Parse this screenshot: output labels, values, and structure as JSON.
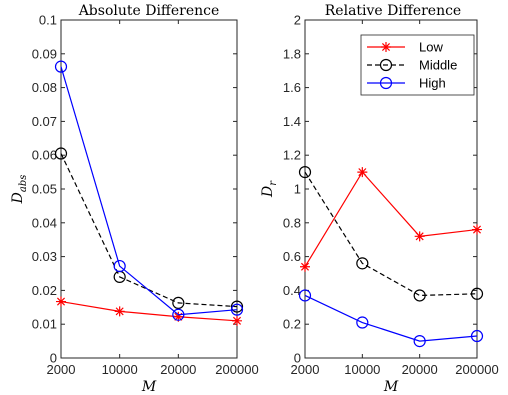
{
  "chart_data": [
    {
      "type": "line",
      "title": "Absolute Difference",
      "xlabel": "M",
      "ylabel_main": "D",
      "ylabel_sub": "abs",
      "categories": [
        "2000",
        "10000",
        "20000",
        "200000"
      ],
      "ylim": [
        0,
        0.1
      ],
      "yticks": [
        0,
        0.01,
        0.02,
        0.03,
        0.04,
        0.05,
        0.06,
        0.07,
        0.08,
        0.09,
        0.1
      ],
      "ytick_labels": [
        "0",
        "0.01",
        "0.02",
        "0.03",
        "0.04",
        "0.05",
        "0.06",
        "0.07",
        "0.08",
        "0.09",
        "0.1"
      ],
      "grid": false,
      "series": [
        {
          "name": "Low",
          "values": [
            0.0167,
            0.0138,
            0.0122,
            0.011
          ]
        },
        {
          "name": "Middle",
          "values": [
            0.0605,
            0.024,
            0.0163,
            0.0152
          ]
        },
        {
          "name": "High",
          "values": [
            0.0862,
            0.0272,
            0.0128,
            0.0143
          ]
        }
      ]
    },
    {
      "type": "line",
      "title": "Relative Difference",
      "xlabel": "M",
      "ylabel_main": "D",
      "ylabel_sub": "r",
      "categories": [
        "2000",
        "10000",
        "20000",
        "200000"
      ],
      "ylim": [
        0,
        2
      ],
      "yticks": [
        0,
        0.2,
        0.4,
        0.6,
        0.8,
        1,
        1.2,
        1.4,
        1.6,
        1.8,
        2
      ],
      "ytick_labels": [
        "0",
        "0.2",
        "0.4",
        "0.6",
        "0.8",
        "1",
        "1.2",
        "1.4",
        "1.6",
        "1.8",
        "2"
      ],
      "grid": false,
      "legend": "top-right",
      "series": [
        {
          "name": "Low",
          "values": [
            0.54,
            1.1,
            0.72,
            0.76
          ]
        },
        {
          "name": "Middle",
          "values": [
            1.1,
            0.56,
            0.37,
            0.38
          ]
        },
        {
          "name": "High",
          "values": [
            0.37,
            0.21,
            0.1,
            0.13
          ]
        }
      ]
    }
  ],
  "styles": {
    "Low": {
      "color": "#ff0000",
      "marker": "asterisk",
      "dash": "solid"
    },
    "Middle": {
      "color": "#000000",
      "marker": "circle",
      "dash": "dashed"
    },
    "High": {
      "color": "#0000ff",
      "marker": "circle",
      "dash": "solid"
    }
  }
}
